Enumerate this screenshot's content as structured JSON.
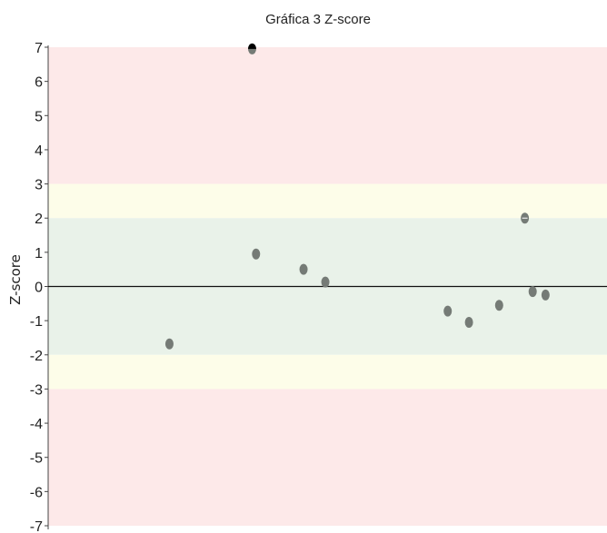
{
  "chart_data": {
    "type": "scatter",
    "title": "Gráfica 3 Z-score",
    "xlabel": "",
    "ylabel": "Z-score",
    "ylim": [
      -7,
      7
    ],
    "yticks": [
      7,
      6,
      5,
      4,
      3,
      2,
      1,
      0,
      -1,
      -2,
      -3,
      -4,
      -5,
      -6,
      -7
    ],
    "xlim": [
      0,
      1
    ],
    "grid": false,
    "zones": [
      {
        "from": 3,
        "to": 7,
        "color": "#fde9e9"
      },
      {
        "from": 2,
        "to": 3,
        "color": "#fdfde9"
      },
      {
        "from": -2,
        "to": 2,
        "color": "#e9f2e9"
      },
      {
        "from": -3,
        "to": -2,
        "color": "#fdfde9"
      },
      {
        "from": -7,
        "to": -3,
        "color": "#fde9e9"
      }
    ],
    "reference_line": 0,
    "points": [
      {
        "x": 0.217,
        "y": -1.68,
        "color": "#757b76"
      },
      {
        "x": 0.365,
        "y": 6.95,
        "color": "#757b76",
        "marker": "off-scale",
        "marker_color": "#000000"
      },
      {
        "x": 0.372,
        "y": 0.95,
        "color": "#757b76"
      },
      {
        "x": 0.457,
        "y": 0.5,
        "color": "#757b76"
      },
      {
        "x": 0.496,
        "y": 0.13,
        "color": "#757b76"
      },
      {
        "x": 0.715,
        "y": -0.72,
        "color": "#757b76"
      },
      {
        "x": 0.753,
        "y": -1.05,
        "color": "#757b76"
      },
      {
        "x": 0.807,
        "y": -0.55,
        "color": "#757b76"
      },
      {
        "x": 0.853,
        "y": 2.0,
        "color": "#757b76",
        "marker": "highlight",
        "marker_color": "#ffffff"
      },
      {
        "x": 0.867,
        "y": -0.15,
        "color": "#757b76"
      },
      {
        "x": 0.89,
        "y": -0.25,
        "color": "#757b76"
      }
    ]
  }
}
